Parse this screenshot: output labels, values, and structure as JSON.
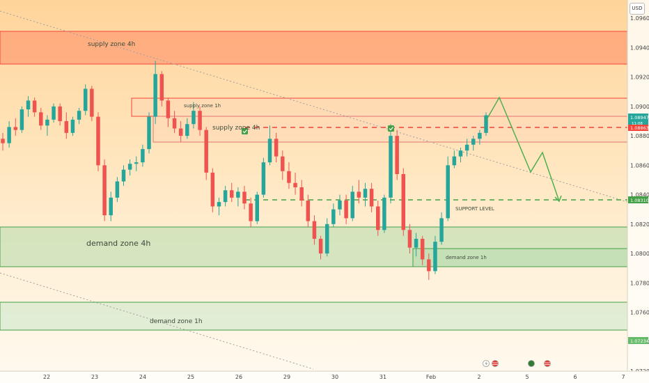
{
  "header": {
    "currency": "USD"
  },
  "chart_data": {
    "type": "candlestick",
    "symbol_currency": "USD",
    "ylim": [
      1.072,
      1.097
    ],
    "y_ticks": [
      "1.09600",
      "1.09400",
      "1.09200",
      "1.09000",
      "1.08800",
      "1.08600",
      "1.08400",
      "1.08200",
      "1.08000",
      "1.07800",
      "1.07600",
      "1.07400",
      "1.07200"
    ],
    "x_ticks": [
      "22",
      "23",
      "24",
      "25",
      "26",
      "29",
      "30",
      "31",
      "Feb",
      "2",
      "5",
      "6",
      "7"
    ],
    "price_tags": {
      "last_price": "1.08947",
      "countdown": "11:08",
      "resistance": "1.08863",
      "support": "1.08310",
      "low": "1.07234"
    },
    "colors": {
      "up": "#26a69a",
      "down": "#ef5350",
      "supply": "#f44336",
      "demand": "#43a047",
      "trend": "#999999",
      "projection": "#4caf50"
    },
    "zones": [
      {
        "label": "supply zone 4h",
        "type": "supply",
        "top": 1.096,
        "bottom": 1.0935
      },
      {
        "label": "supply zone 1h",
        "type": "supply",
        "top": 1.0909,
        "bottom": 1.0895
      },
      {
        "label": "supply zone 4h",
        "type": "supply",
        "top": 1.0894,
        "bottom": 1.0875
      },
      {
        "label": "demand zone 4h",
        "type": "demand",
        "top": 1.0811,
        "bottom": 1.0781
      },
      {
        "label": "demand zone 1h",
        "type": "demand",
        "top": 1.0794,
        "bottom": 1.0781
      },
      {
        "label": "demand zone 1h",
        "type": "demand",
        "top": 1.0754,
        "bottom": 1.0733
      }
    ],
    "levels": [
      {
        "label": "",
        "value": 1.08863,
        "style": "dashed",
        "color": "#f44336"
      },
      {
        "label": "SUPPORT LEVEL",
        "value": 1.0831,
        "style": "dashed",
        "color": "#43a047"
      }
    ],
    "projection": [
      {
        "time": "Feb 2",
        "price": 1.0894
      },
      {
        "time": "Feb 2",
        "price": 1.0909
      },
      {
        "time": "Feb 5",
        "price": 1.0852
      },
      {
        "time": "Feb 5",
        "price": 1.0862
      },
      {
        "time": "Feb 6",
        "price": 1.0831
      }
    ],
    "series": [
      {
        "values": [
          [
            1.0878,
            1.0882,
            1.087,
            1.0875
          ],
          [
            1.0875,
            1.089,
            1.0872,
            1.0886
          ],
          [
            1.0886,
            1.0892,
            1.088,
            1.0884
          ],
          [
            1.0884,
            1.09,
            1.0882,
            1.0898
          ],
          [
            1.0898,
            1.0907,
            1.0893,
            1.0904
          ],
          [
            1.0904,
            1.0906,
            1.0893,
            1.0896
          ],
          [
            1.0896,
            1.0899,
            1.0884,
            1.0887
          ],
          [
            1.0887,
            1.0894,
            1.088,
            1.0891
          ],
          [
            1.0891,
            1.0902,
            1.0889,
            1.09
          ],
          [
            1.09,
            1.0902,
            1.0887,
            1.089
          ],
          [
            1.089,
            1.0896,
            1.0878,
            1.0882
          ],
          [
            1.0882,
            1.0893,
            1.088,
            1.0891
          ],
          [
            1.0891,
            1.0899,
            1.0888,
            1.0897
          ],
          [
            1.0897,
            1.0915,
            1.0894,
            1.0912
          ],
          [
            1.0912,
            1.0914,
            1.089,
            1.0893
          ],
          [
            1.0893,
            1.0896,
            1.0856,
            1.086
          ],
          [
            1.086,
            1.0864,
            1.0822,
            1.0826
          ],
          [
            1.0826,
            1.0842,
            1.0822,
            1.0838
          ],
          [
            1.0838,
            1.0852,
            1.0835,
            1.0849
          ],
          [
            1.0849,
            1.086,
            1.0846,
            1.0857
          ],
          [
            1.0857,
            1.0864,
            1.0853,
            1.0861
          ],
          [
            1.0861,
            1.0866,
            1.0856,
            1.0862
          ],
          [
            1.0862,
            1.0874,
            1.0859,
            1.0871
          ],
          [
            1.0871,
            1.0896,
            1.0868,
            1.0893
          ],
          [
            1.0893,
            1.0931,
            1.0888,
            1.0922
          ],
          [
            1.0922,
            1.0924,
            1.09,
            1.0904
          ],
          [
            1.0904,
            1.0906,
            1.0886,
            1.0892
          ],
          [
            1.0892,
            1.0897,
            1.0882,
            1.0885
          ],
          [
            1.0885,
            1.089,
            1.0876,
            1.088
          ],
          [
            1.088,
            1.0892,
            1.0878,
            1.0888
          ],
          [
            1.0888,
            1.0903,
            1.0885,
            1.0897
          ],
          [
            1.0897,
            1.09,
            1.088,
            1.0884
          ],
          [
            1.0884,
            1.0886,
            1.085,
            1.0855
          ],
          [
            1.0855,
            1.0858,
            1.0828,
            1.0832
          ],
          [
            1.0832,
            1.0838,
            1.0826,
            1.0835
          ],
          [
            1.0835,
            1.0846,
            1.0832,
            1.0843
          ],
          [
            1.0843,
            1.0848,
            1.0835,
            1.0838
          ],
          [
            1.0838,
            1.0845,
            1.0832,
            1.0842
          ],
          [
            1.0842,
            1.0846,
            1.083,
            1.0834
          ],
          [
            1.0834,
            1.0838,
            1.0818,
            1.0822
          ],
          [
            1.0822,
            1.0842,
            1.082,
            1.084
          ],
          [
            1.084,
            1.0865,
            1.0838,
            1.0862
          ],
          [
            1.0862,
            1.0887,
            1.086,
            1.0878
          ],
          [
            1.0878,
            1.0882,
            1.0862,
            1.0866
          ],
          [
            1.0866,
            1.087,
            1.085,
            1.0856
          ],
          [
            1.0856,
            1.0862,
            1.0844,
            1.0848
          ],
          [
            1.0848,
            1.0855,
            1.084,
            1.0845
          ],
          [
            1.0845,
            1.085,
            1.0832,
            1.0836
          ],
          [
            1.0836,
            1.084,
            1.0818,
            1.0822
          ],
          [
            1.0822,
            1.0826,
            1.0806,
            1.081
          ],
          [
            1.081,
            1.0812,
            1.0796,
            1.08
          ],
          [
            1.08,
            1.0824,
            1.0798,
            1.082
          ],
          [
            1.082,
            1.0834,
            1.0818,
            1.083
          ],
          [
            1.083,
            1.084,
            1.0826,
            1.0836
          ],
          [
            1.0836,
            1.084,
            1.082,
            1.0824
          ],
          [
            1.0824,
            1.0846,
            1.0822,
            1.0842
          ],
          [
            1.0842,
            1.085,
            1.0834,
            1.0838
          ],
          [
            1.0838,
            1.0848,
            1.0832,
            1.0844
          ],
          [
            1.0844,
            1.0848,
            1.0828,
            1.0832
          ],
          [
            1.0832,
            1.0836,
            1.0812,
            1.0816
          ],
          [
            1.0816,
            1.084,
            1.0814,
            1.0838
          ],
          [
            1.0838,
            1.0888,
            1.0834,
            1.088
          ],
          [
            1.088,
            1.0884,
            1.085,
            1.0854
          ],
          [
            1.0854,
            1.0858,
            1.0812,
            1.0816
          ],
          [
            1.0816,
            1.082,
            1.08,
            1.0804
          ],
          [
            1.0804,
            1.0814,
            1.0798,
            1.081
          ],
          [
            1.081,
            1.0812,
            1.0792,
            1.0796
          ],
          [
            1.0796,
            1.08,
            1.0782,
            1.0788
          ],
          [
            1.0788,
            1.0812,
            1.0786,
            1.0808
          ],
          [
            1.0808,
            1.0828,
            1.0806,
            1.0824
          ],
          [
            1.0824,
            1.0866,
            1.0822,
            1.086
          ],
          [
            1.086,
            1.087,
            1.0858,
            1.0866
          ],
          [
            1.0866,
            1.0872,
            1.0862,
            1.087
          ],
          [
            1.087,
            1.0878,
            1.0866,
            1.0874
          ],
          [
            1.0874,
            1.088,
            1.087,
            1.0878
          ],
          [
            1.0878,
            1.0884,
            1.0874,
            1.0882
          ],
          [
            1.0882,
            1.0896,
            1.088,
            1.0894
          ]
        ]
      }
    ]
  },
  "zone_labels": {
    "supply_4h_top": "supply zone 4h",
    "supply_1h": "supply zone 1h",
    "supply_4h_mid": "supply zone 4h",
    "demand_4h": "demand zone 4h",
    "demand_1h_right": "demand zone 1h",
    "demand_1h_bottom": "demand zone 1h",
    "support_level": "SUPPORT LEVEL"
  }
}
